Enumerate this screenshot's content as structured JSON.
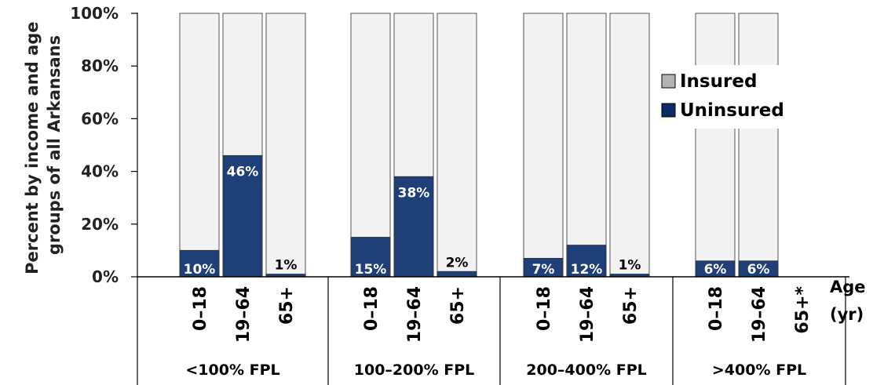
{
  "chart_data": {
    "type": "bar",
    "stacked": true,
    "ylabel_lines": [
      "Percent by income and age",
      "groups of all Arkansans"
    ],
    "y_ticks": [
      "0%",
      "20%",
      "40%",
      "60%",
      "80%",
      "100%"
    ],
    "ylim": [
      0,
      100
    ],
    "x_axis_label_lines": [
      "Age",
      "(yr)"
    ],
    "legend": {
      "position": "right",
      "entries": [
        {
          "name": "Insured",
          "color": "#b3b3b3"
        },
        {
          "name": "Uninsured",
          "color": "#0d2b63"
        }
      ]
    },
    "colors": {
      "insured_bar": "#f2f2f2",
      "uninsured_bar": "#1e3f78",
      "uninsured_label": "#ffffff",
      "small_label": "#000000"
    },
    "groups": [
      {
        "label": "<100% FPL",
        "bars": [
          {
            "category": "0–18",
            "uninsured": 10,
            "label": "10%"
          },
          {
            "category": "19–64",
            "uninsured": 46,
            "label": "46%"
          },
          {
            "category": "65+",
            "uninsured": 1,
            "label": "1%"
          }
        ]
      },
      {
        "label": "100–200% FPL",
        "bars": [
          {
            "category": "0–18",
            "uninsured": 15,
            "label": "15%"
          },
          {
            "category": "19–64",
            "uninsured": 38,
            "label": "38%"
          },
          {
            "category": "65+",
            "uninsured": 2,
            "label": "2%"
          }
        ]
      },
      {
        "label": "200–400% FPL",
        "bars": [
          {
            "category": "0–18",
            "uninsured": 7,
            "label": "7%"
          },
          {
            "category": "19–64",
            "uninsured": 12,
            "label": "12%"
          },
          {
            "category": "65+",
            "uninsured": 1,
            "label": "1%"
          }
        ]
      },
      {
        "label": ">400% FPL",
        "bars": [
          {
            "category": "0–18",
            "uninsured": 6,
            "label": "6%"
          },
          {
            "category": "19–64",
            "uninsured": 6,
            "label": "6%"
          },
          {
            "category": "65+*",
            "uninsured": null,
            "label": ""
          }
        ]
      }
    ]
  }
}
